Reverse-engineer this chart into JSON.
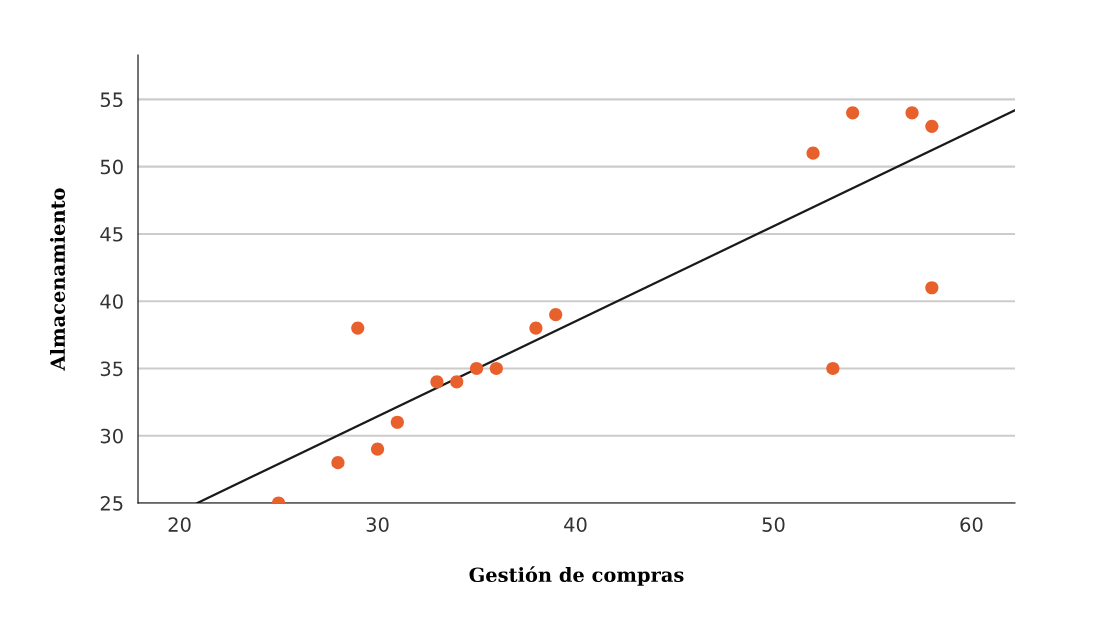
{
  "chart_data": {
    "type": "scatter",
    "xlabel": "Gestión de compras",
    "ylabel": "Almacenamiento",
    "xlim": [
      17.9,
      62.2
    ],
    "ylim": [
      25,
      58.3
    ],
    "xticks": [
      20,
      30,
      40,
      50,
      60
    ],
    "yticks": [
      25,
      30,
      35,
      40,
      45,
      50,
      55
    ],
    "grid": "y",
    "series": [
      {
        "marker": "circle",
        "color": "#e8612c",
        "x": [
          25,
          28,
          29,
          30,
          31,
          33,
          34,
          35,
          36,
          38,
          39,
          52,
          53,
          54,
          57,
          58,
          58
        ],
        "values": [
          25,
          28,
          38,
          29,
          31,
          34,
          34,
          35,
          35,
          38,
          39,
          51,
          35,
          54,
          54,
          53,
          41
        ]
      },
      {
        "type": "line",
        "color": "#1a1a1a",
        "line_style": "solid",
        "x": [
          20.9,
          62.2
        ],
        "values": [
          25,
          54.2
        ]
      }
    ]
  }
}
